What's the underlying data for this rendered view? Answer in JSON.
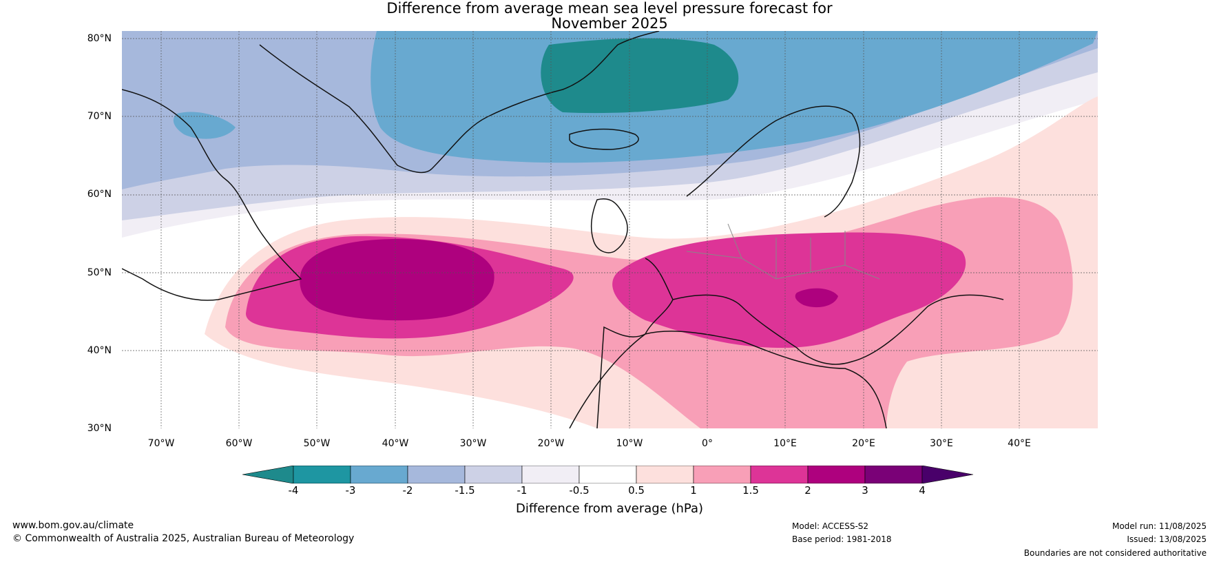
{
  "title": {
    "line1": "Difference from average mean sea level pressure forecast for",
    "line2": "November 2025"
  },
  "map": {
    "latitude_labels": [
      "80°N",
      "70°N",
      "60°N",
      "50°N",
      "40°N",
      "30°N"
    ],
    "longitude_labels": [
      "70°W",
      "60°W",
      "50°W",
      "40°W",
      "30°W",
      "20°W",
      "10°W",
      "0°",
      "10°E",
      "20°E",
      "30°E",
      "40°E"
    ],
    "extent": {
      "lon_min": -75,
      "lon_max": 50,
      "lat_min": 30,
      "lat_max": 81
    },
    "anomaly_features": [
      {
        "feature": "positive anomaly centre, central North Atlantic",
        "peak_hPa": "2 to 3"
      },
      {
        "feature": "positive anomaly centre, central Europe / Mediterranean",
        "peak_hPa": "2 to 3"
      },
      {
        "feature": "negative anomaly, Greenland Sea / Iceland",
        "peak_hPa": "-3 to -4"
      }
    ]
  },
  "colorbar": {
    "levels": [
      "-4",
      "-3",
      "-2",
      "-1.5",
      "-1",
      "-0.5",
      "0.5",
      "1",
      "1.5",
      "2",
      "3",
      "4"
    ],
    "colors": [
      "#1e8a8c",
      "#1e96a2",
      "#68a9d0",
      "#a6b8dc",
      "#cdd1e6",
      "#f1eef5",
      "#ffffff",
      "#fde0dd",
      "#f89fb7",
      "#dd3497",
      "#ae017e",
      "#7a0177",
      "#49006a"
    ],
    "label": "Difference from average (hPa)"
  },
  "footer": {
    "url": "www.bom.gov.au/climate",
    "copyright": "© Commonwealth of Australia 2025, Australian Bureau of Meteorology",
    "model": "Model: ACCESS-S2",
    "base_period": "Base period: 1981-2018",
    "model_run": "Model run: 11/08/2025",
    "issued": "Issued: 13/08/2025",
    "boundaries": "Boundaries are not considered authoritative"
  }
}
